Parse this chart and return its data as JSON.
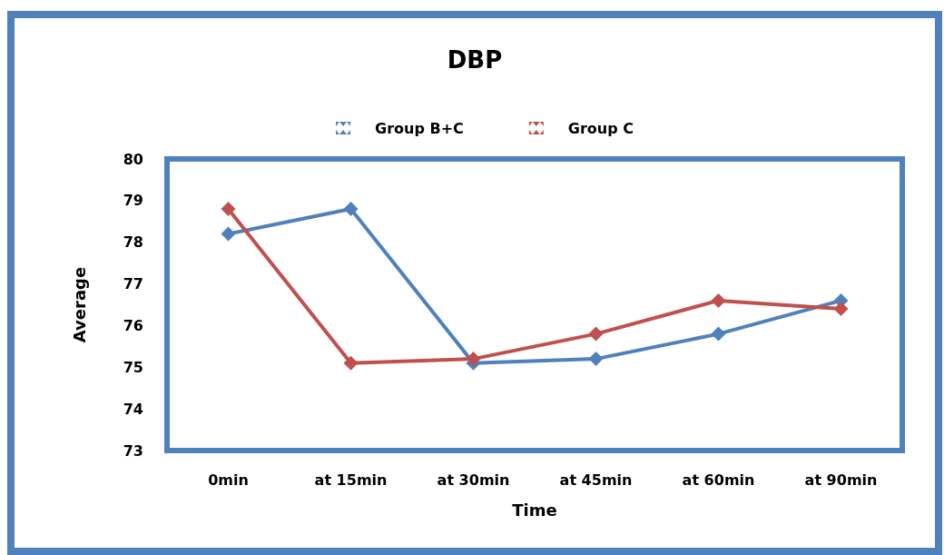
{
  "chart_data": {
    "type": "line",
    "title": "DBP",
    "xlabel": "Time",
    "ylabel": "Average",
    "categories": [
      "0min",
      "at 15min",
      "at 30min",
      "at 45min",
      "at 60min",
      "at 90min"
    ],
    "series": [
      {
        "name": "Group B+C",
        "color": "#4f81bd",
        "values": [
          78.2,
          78.8,
          75.1,
          75.2,
          75.8,
          76.6
        ]
      },
      {
        "name": "Group C",
        "color": "#c0504d",
        "values": [
          78.8,
          75.1,
          75.2,
          75.8,
          76.6,
          76.4
        ]
      }
    ],
    "ylim": [
      73,
      80
    ],
    "yticks": [
      73,
      74,
      75,
      76,
      77,
      78,
      79,
      80
    ],
    "grid": false,
    "legend": "top",
    "marker": "diamond",
    "line_style": "solid"
  }
}
